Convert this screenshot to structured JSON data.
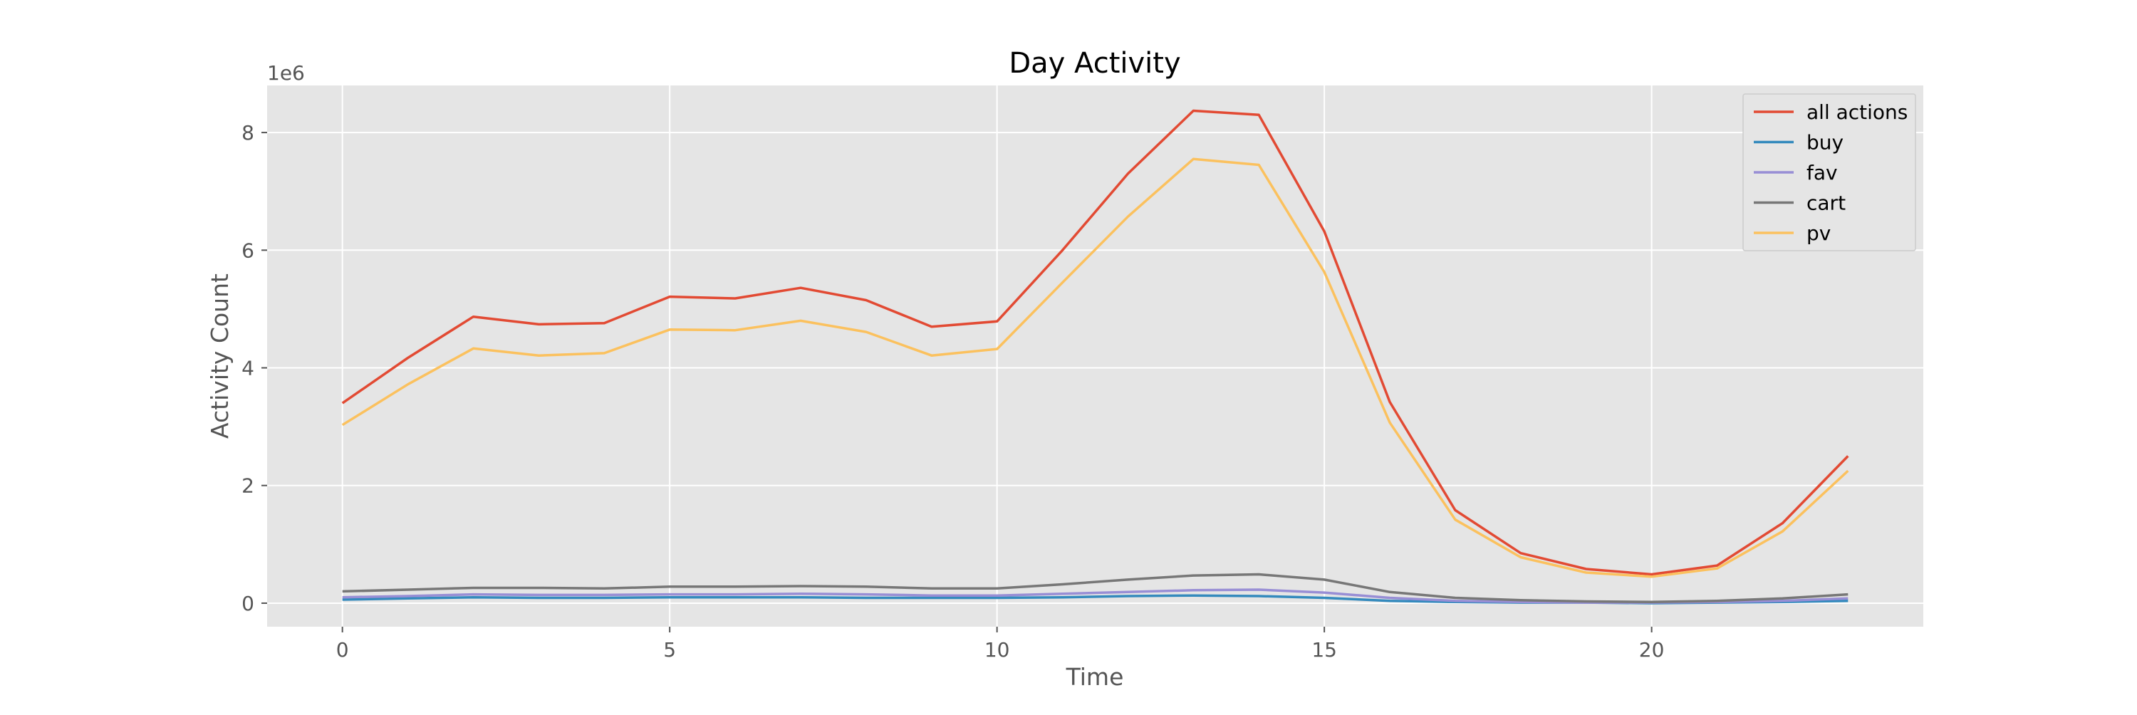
{
  "chart_data": {
    "type": "line",
    "title": "Day Activity",
    "xlabel": "Time",
    "ylabel": "Activity Count",
    "y_offset_label": "1e6",
    "xlim": [
      -1.15,
      24.15
    ],
    "ylim": [
      -0.4,
      8.8
    ],
    "xticks": [
      0,
      5,
      10,
      15,
      20
    ],
    "yticks": [
      0,
      2,
      4,
      6,
      8
    ],
    "grid": true,
    "legend_position": "top-right",
    "x": [
      0,
      1,
      2,
      3,
      4,
      5,
      6,
      7,
      8,
      9,
      10,
      11,
      12,
      13,
      14,
      15,
      16,
      17,
      18,
      19,
      20,
      21,
      22,
      23
    ],
    "series": [
      {
        "name": "all actions",
        "color": "#E24A33",
        "values": [
          3.4,
          4.17,
          4.87,
          4.74,
          4.76,
          5.21,
          5.18,
          5.36,
          5.15,
          4.7,
          4.79,
          6.0,
          7.3,
          8.37,
          8.3,
          6.32,
          3.42,
          1.58,
          0.85,
          0.58,
          0.49,
          0.64,
          1.36,
          2.5
        ]
      },
      {
        "name": "buy",
        "color": "#348ABD",
        "values": [
          0.06,
          0.08,
          0.1,
          0.09,
          0.09,
          0.1,
          0.1,
          0.1,
          0.09,
          0.09,
          0.09,
          0.1,
          0.12,
          0.13,
          0.12,
          0.09,
          0.04,
          0.02,
          0.01,
          0.01,
          0.0,
          0.01,
          0.02,
          0.04
        ]
      },
      {
        "name": "fav",
        "color": "#988ED5",
        "values": [
          0.1,
          0.12,
          0.15,
          0.14,
          0.14,
          0.15,
          0.15,
          0.16,
          0.15,
          0.13,
          0.13,
          0.16,
          0.19,
          0.22,
          0.23,
          0.18,
          0.09,
          0.04,
          0.02,
          0.01,
          0.01,
          0.02,
          0.04,
          0.08
        ]
      },
      {
        "name": "cart",
        "color": "#777777",
        "values": [
          0.2,
          0.23,
          0.26,
          0.26,
          0.25,
          0.28,
          0.28,
          0.29,
          0.28,
          0.25,
          0.25,
          0.32,
          0.4,
          0.47,
          0.49,
          0.4,
          0.19,
          0.09,
          0.05,
          0.03,
          0.02,
          0.04,
          0.08,
          0.15
        ]
      },
      {
        "name": "pv",
        "color": "#FBC15E",
        "values": [
          3.03,
          3.72,
          4.33,
          4.21,
          4.25,
          4.65,
          4.64,
          4.8,
          4.61,
          4.21,
          4.32,
          5.45,
          6.57,
          7.55,
          7.45,
          5.63,
          3.07,
          1.42,
          0.78,
          0.52,
          0.45,
          0.59,
          1.22,
          2.25
        ]
      }
    ]
  }
}
